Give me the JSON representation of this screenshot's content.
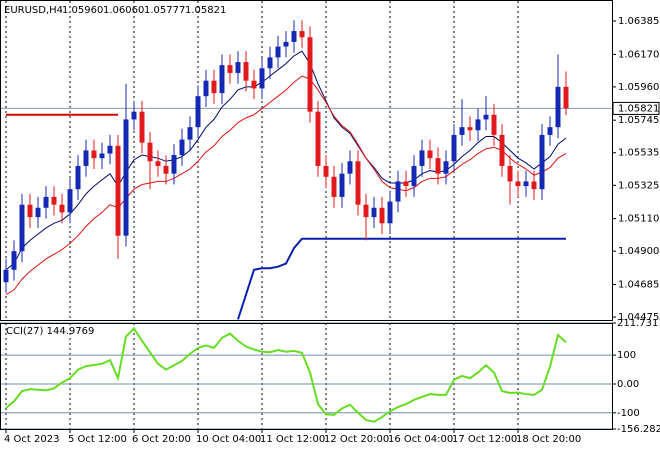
{
  "chart_data": {
    "type": "candlestick",
    "title": "EURUSD,H4",
    "header_values": [
      "1.05960",
      "1.06060",
      "1.05777",
      "1.05821"
    ],
    "categories": [
      "4 Oct 2023",
      null,
      null,
      null,
      null,
      null,
      null,
      null,
      "5 Oct 12:00",
      null,
      null,
      null,
      null,
      null,
      null,
      null,
      "6 Oct 20:00",
      null,
      null,
      null,
      null,
      null,
      null,
      null,
      "10 Oct 04:00",
      null,
      null,
      null,
      null,
      null,
      null,
      null,
      "11 Oct 12:00",
      null,
      null,
      null,
      null,
      null,
      null,
      null,
      "12 Oct 20:00",
      null,
      null,
      null,
      null,
      null,
      null,
      null,
      "16 Oct 04:00",
      null,
      null,
      null,
      null,
      null,
      null,
      null,
      "17 Oct 12:00",
      null,
      null,
      null,
      null,
      null,
      null,
      null,
      "18 Oct 20:00",
      null,
      null,
      null,
      null,
      null,
      null
    ],
    "open": [
      1.047,
      1.0478,
      1.049,
      1.052,
      1.0512,
      1.0518,
      1.0525,
      1.052,
      1.0515,
      1.053,
      1.0545,
      1.0555,
      1.055,
      1.0553,
      1.0558,
      1.05,
      1.0575,
      1.058,
      1.056,
      1.0548,
      1.0545,
      1.054,
      1.0552,
      1.0562,
      1.057,
      1.059,
      1.06,
      1.0592,
      1.061,
      1.0605,
      1.0612,
      1.06,
      1.0595,
      1.0608,
      1.0615,
      1.0622,
      1.0625,
      1.0632,
      1.0628,
      1.058,
      1.0545,
      1.0538,
      1.0525,
      1.054,
      1.0548,
      1.052,
      1.0512,
      1.0518,
      1.0508,
      1.0522,
      1.0535,
      1.0532,
      1.0545,
      1.0555,
      1.055,
      1.054,
      1.0548,
      1.0565,
      1.057,
      1.0568,
      1.0575,
      1.0578,
      1.0565,
      1.0545,
      1.0535,
      1.0532,
      1.0535,
      1.053,
      1.0565,
      1.057,
      1.0596
    ],
    "high": [
      1.0485,
      1.0497,
      1.0527,
      1.0527,
      1.0525,
      1.0532,
      1.0532,
      1.0527,
      1.0537,
      1.0552,
      1.0562,
      1.0562,
      1.056,
      1.0565,
      1.0565,
      1.0598,
      1.0587,
      1.0587,
      1.0567,
      1.0555,
      1.0552,
      1.0559,
      1.0569,
      1.0577,
      1.0597,
      1.0607,
      1.0607,
      1.0617,
      1.0617,
      1.0619,
      1.0619,
      1.0607,
      1.0615,
      1.0622,
      1.0629,
      1.0632,
      1.0639,
      1.0639,
      1.0635,
      1.0587,
      1.0552,
      1.0545,
      1.0547,
      1.0555,
      1.0555,
      1.0527,
      1.0525,
      1.0525,
      1.0529,
      1.0542,
      1.0542,
      1.0552,
      1.0562,
      1.0562,
      1.0557,
      1.0555,
      1.0572,
      1.0588,
      1.0577,
      1.0582,
      1.059,
      1.0585,
      1.0572,
      1.0552,
      1.0542,
      1.0542,
      1.0542,
      1.0572,
      1.0577,
      1.0617,
      1.0606
    ],
    "low": [
      1.0463,
      1.0471,
      1.0483,
      1.0505,
      1.0505,
      1.0511,
      1.0513,
      1.0508,
      1.0508,
      1.0523,
      1.0538,
      1.0543,
      1.0543,
      1.0546,
      1.0485,
      1.0493,
      1.0568,
      1.0553,
      1.053,
      1.0538,
      1.0533,
      1.0533,
      1.0545,
      1.0555,
      1.0563,
      1.0583,
      1.0585,
      1.0585,
      1.0598,
      1.0598,
      1.0593,
      1.0588,
      1.0588,
      1.0601,
      1.0608,
      1.0615,
      1.0618,
      1.0621,
      1.0573,
      1.0538,
      1.0531,
      1.0518,
      1.0518,
      1.0533,
      1.0513,
      1.0497,
      1.0505,
      1.0501,
      1.0501,
      1.0515,
      1.0525,
      1.0525,
      1.0538,
      1.0543,
      1.0533,
      1.0533,
      1.0541,
      1.0558,
      1.0561,
      1.0561,
      1.0568,
      1.0558,
      1.0538,
      1.052,
      1.0525,
      1.0525,
      1.0523,
      1.0523,
      1.0558,
      1.0563,
      1.05777
    ],
    "close": [
      1.0478,
      1.049,
      1.052,
      1.0512,
      1.0518,
      1.0525,
      1.052,
      1.0515,
      1.053,
      1.0545,
      1.0555,
      1.055,
      1.0553,
      1.0558,
      1.05,
      1.0575,
      1.058,
      1.056,
      1.0548,
      1.0545,
      1.054,
      1.0552,
      1.0562,
      1.057,
      1.059,
      1.06,
      1.0592,
      1.061,
      1.0605,
      1.0612,
      1.06,
      1.0595,
      1.0608,
      1.0615,
      1.0622,
      1.0625,
      1.0632,
      1.0628,
      1.058,
      1.0545,
      1.0538,
      1.0525,
      1.054,
      1.0548,
      1.052,
      1.0512,
      1.0518,
      1.0508,
      1.0522,
      1.0535,
      1.0532,
      1.0545,
      1.0555,
      1.055,
      1.054,
      1.0548,
      1.0565,
      1.057,
      1.0568,
      1.0575,
      1.0578,
      1.0565,
      1.0545,
      1.0535,
      1.0532,
      1.0535,
      1.053,
      1.0565,
      1.057,
      1.0596,
      1.05821
    ],
    "bull_color": "#1428b4",
    "bear_color": "#e0191c",
    "overlays": [
      {
        "color": "#000a6e",
        "values": [
          1.0478,
          1.0482,
          1.0492,
          1.0497,
          1.0501,
          1.0505,
          1.0508,
          1.051,
          1.0514,
          1.052,
          1.0527,
          1.0532,
          1.0536,
          1.054,
          1.0532,
          1.0541,
          1.0549,
          1.0552,
          1.0551,
          1.055,
          1.0548,
          1.0549,
          1.0551,
          1.0555,
          1.0562,
          1.057,
          1.0575,
          1.0583,
          1.0588,
          1.0594,
          1.0596,
          1.0596,
          1.0599,
          1.0603,
          1.0607,
          1.0611,
          1.0616,
          1.0619,
          1.0611,
          1.0598,
          1.0587,
          1.0576,
          1.057,
          1.0566,
          1.0558,
          1.055,
          1.0544,
          1.0537,
          1.0534,
          1.0534,
          1.0534,
          1.0536,
          1.054,
          1.0542,
          1.0541,
          1.0542,
          1.0546,
          1.0551,
          1.0555,
          1.056,
          1.0564,
          1.0564,
          1.056,
          1.0555,
          1.055,
          1.0547,
          1.0543,
          1.0547,
          1.0551,
          1.0559,
          1.0563
        ]
      },
      {
        "color": "#e01010",
        "values": [
          1.0462,
          1.0465,
          1.0472,
          1.0477,
          1.0481,
          1.0485,
          1.0488,
          1.0491,
          1.0495,
          1.05,
          1.0506,
          1.0511,
          1.0515,
          1.052,
          1.0518,
          1.0524,
          1.053,
          1.0533,
          1.0534,
          1.0535,
          1.0535,
          1.0537,
          1.054,
          1.0543,
          1.0548,
          1.0554,
          1.0558,
          1.0564,
          1.0568,
          1.0573,
          1.0576,
          1.0578,
          1.0582,
          1.0586,
          1.059,
          1.0594,
          1.0599,
          1.0603,
          1.0601,
          1.0594,
          1.0586,
          1.0577,
          1.0571,
          1.0567,
          1.0559,
          1.055,
          1.0543,
          1.0535,
          1.0531,
          1.053,
          1.0529,
          1.0531,
          1.0535,
          1.0537,
          1.0537,
          1.0538,
          1.0542,
          1.0546,
          1.0549,
          1.0553,
          1.0556,
          1.0557,
          1.0555,
          1.055,
          1.0546,
          1.0543,
          1.0539,
          1.0541,
          1.0544,
          1.055,
          1.0553
        ]
      },
      {
        "color": "#0a1fb0",
        "values": [
          null,
          null,
          null,
          null,
          null,
          null,
          null,
          null,
          null,
          null,
          null,
          null,
          null,
          null,
          null,
          null,
          null,
          null,
          null,
          null,
          null,
          null,
          null,
          null,
          null,
          null,
          null,
          null,
          null,
          1.0446,
          1.0462,
          1.0478,
          1.0479,
          1.0479,
          1.048,
          1.0482,
          1.0492,
          1.0498,
          1.0498,
          1.0498,
          1.0498,
          1.0498,
          1.0498,
          1.0498,
          1.0498,
          1.0498,
          1.0498,
          1.0498,
          1.0498,
          1.0498,
          1.0498,
          1.0498,
          1.0498,
          1.0498,
          1.0498,
          1.0498,
          1.0498,
          1.0498,
          1.0498,
          1.0498,
          1.0498,
          1.0498,
          1.0498,
          1.0498,
          1.0498,
          1.0498,
          1.0498,
          1.0498,
          1.0498,
          1.0498,
          1.0498
        ]
      },
      {
        "color": "#cc0000",
        "values": [
          1.0578,
          1.0578,
          1.0578,
          1.0578,
          1.0578,
          1.0578,
          1.0578,
          1.0578,
          1.0578,
          1.0578,
          1.0578,
          1.0578,
          1.0578,
          1.0578,
          1.0578,
          null,
          null,
          null,
          null,
          null,
          null,
          null,
          null,
          null,
          null,
          null,
          null,
          null,
          null,
          null,
          null,
          null,
          null,
          null,
          null,
          null,
          null,
          null,
          null,
          null,
          null,
          null,
          null,
          null,
          null,
          null,
          null,
          null,
          null,
          null,
          null,
          null,
          null,
          null,
          null,
          null,
          null,
          null,
          null,
          null,
          null,
          null,
          null,
          null,
          null,
          null,
          null,
          null,
          null,
          null,
          null
        ]
      }
    ],
    "ylim": [
      1.04456,
      1.06514
    ],
    "yticks": [
      1.06385,
      {
        "value": 1.0617,
        "label": "1.06170"
      },
      {
        "value": 1.0596,
        "label": "1.05960"
      },
      1.05745,
      1.05535,
      1.05325,
      {
        "value": 1.0511,
        "label": "1.05110"
      },
      {
        "value": 1.049,
        "label": "1.04900"
      },
      1.04685,
      1.04475
    ],
    "current_price": {
      "value": 1.05821,
      "label": "1.05821"
    },
    "indicator": {
      "title": "CCI(27) 144.9769",
      "color": "#66dd22",
      "values": [
        -83,
        -60,
        -25,
        -18,
        -20,
        -22,
        -15,
        5,
        20,
        50,
        62,
        66,
        70,
        83,
        20,
        165,
        193,
        150,
        110,
        70,
        50,
        65,
        80,
        105,
        125,
        134,
        125,
        160,
        175,
        150,
        130,
        120,
        112,
        110,
        118,
        112,
        115,
        108,
        40,
        -70,
        -105,
        -107,
        -85,
        -72,
        -100,
        -125,
        -131,
        -115,
        -95,
        -80,
        -70,
        -55,
        -45,
        -35,
        -38,
        -38,
        15,
        28,
        20,
        40,
        65,
        40,
        -25,
        -31,
        -30,
        -35,
        -38,
        -20,
        60,
        170,
        144.9769
      ],
      "ylim": [
        -156.2826,
        211.7311
      ],
      "yticks": [
        {
          "value": 211.7311,
          "label": "211.7311"
        },
        100,
        {
          "value": 0,
          "label": "0.00"
        },
        -100,
        {
          "value": -156.2826,
          "label": "-156.2826"
        }
      ]
    }
  }
}
